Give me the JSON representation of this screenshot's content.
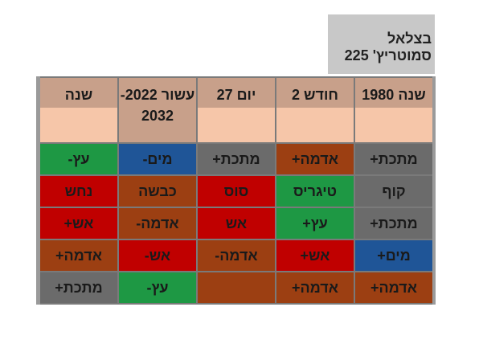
{
  "title": "בצלאל סמוטריץ' 225",
  "table": {
    "header": [
      "שנה 1980",
      "חודש 2",
      "יום 27",
      "עשור 2022- 2032",
      "שנה"
    ],
    "rows": [
      [
        {
          "text": "מתכת+",
          "color": "#6b6b6b"
        },
        {
          "text": "אדמה+",
          "color": "#9c3f12"
        },
        {
          "text": "מתכת+",
          "color": "#6b6b6b"
        },
        {
          "text": "מים-",
          "color": "#1f5597"
        },
        {
          "text": "עץ-",
          "color": "#1e9844"
        }
      ],
      [
        {
          "text": "קוף",
          "color": "#6b6b6b"
        },
        {
          "text": "טיגריס",
          "color": "#1e9844"
        },
        {
          "text": "סוס",
          "color": "#c00000"
        },
        {
          "text": "כבשה",
          "color": "#9c3f12"
        },
        {
          "text": "נחש",
          "color": "#c00000"
        }
      ],
      [
        {
          "text": "מתכת+",
          "color": "#6b6b6b"
        },
        {
          "text": "עץ+",
          "color": "#1e9844"
        },
        {
          "text": "אש",
          "color": "#c00000"
        },
        {
          "text": "אדמה-",
          "color": "#9c3f12"
        },
        {
          "text": "אש+",
          "color": "#c00000"
        }
      ],
      [
        {
          "text": "מים+",
          "color": "#1f5597"
        },
        {
          "text": "אש+",
          "color": "#c00000"
        },
        {
          "text": "אדמה-",
          "color": "#9c3f12"
        },
        {
          "text": "אש-",
          "color": "#c00000"
        },
        {
          "text": "אדמה+",
          "color": "#9c3f12"
        }
      ],
      [
        {
          "text": "אדמה+",
          "color": "#9c3f12"
        },
        {
          "text": "אדמה+",
          "color": "#9c3f12"
        },
        {
          "text": null,
          "color": "#9c3f12"
        },
        {
          "text": "עץ-",
          "color": "#1e9844"
        },
        {
          "text": "מתכת+",
          "color": "#6b6b6b"
        }
      ]
    ]
  }
}
